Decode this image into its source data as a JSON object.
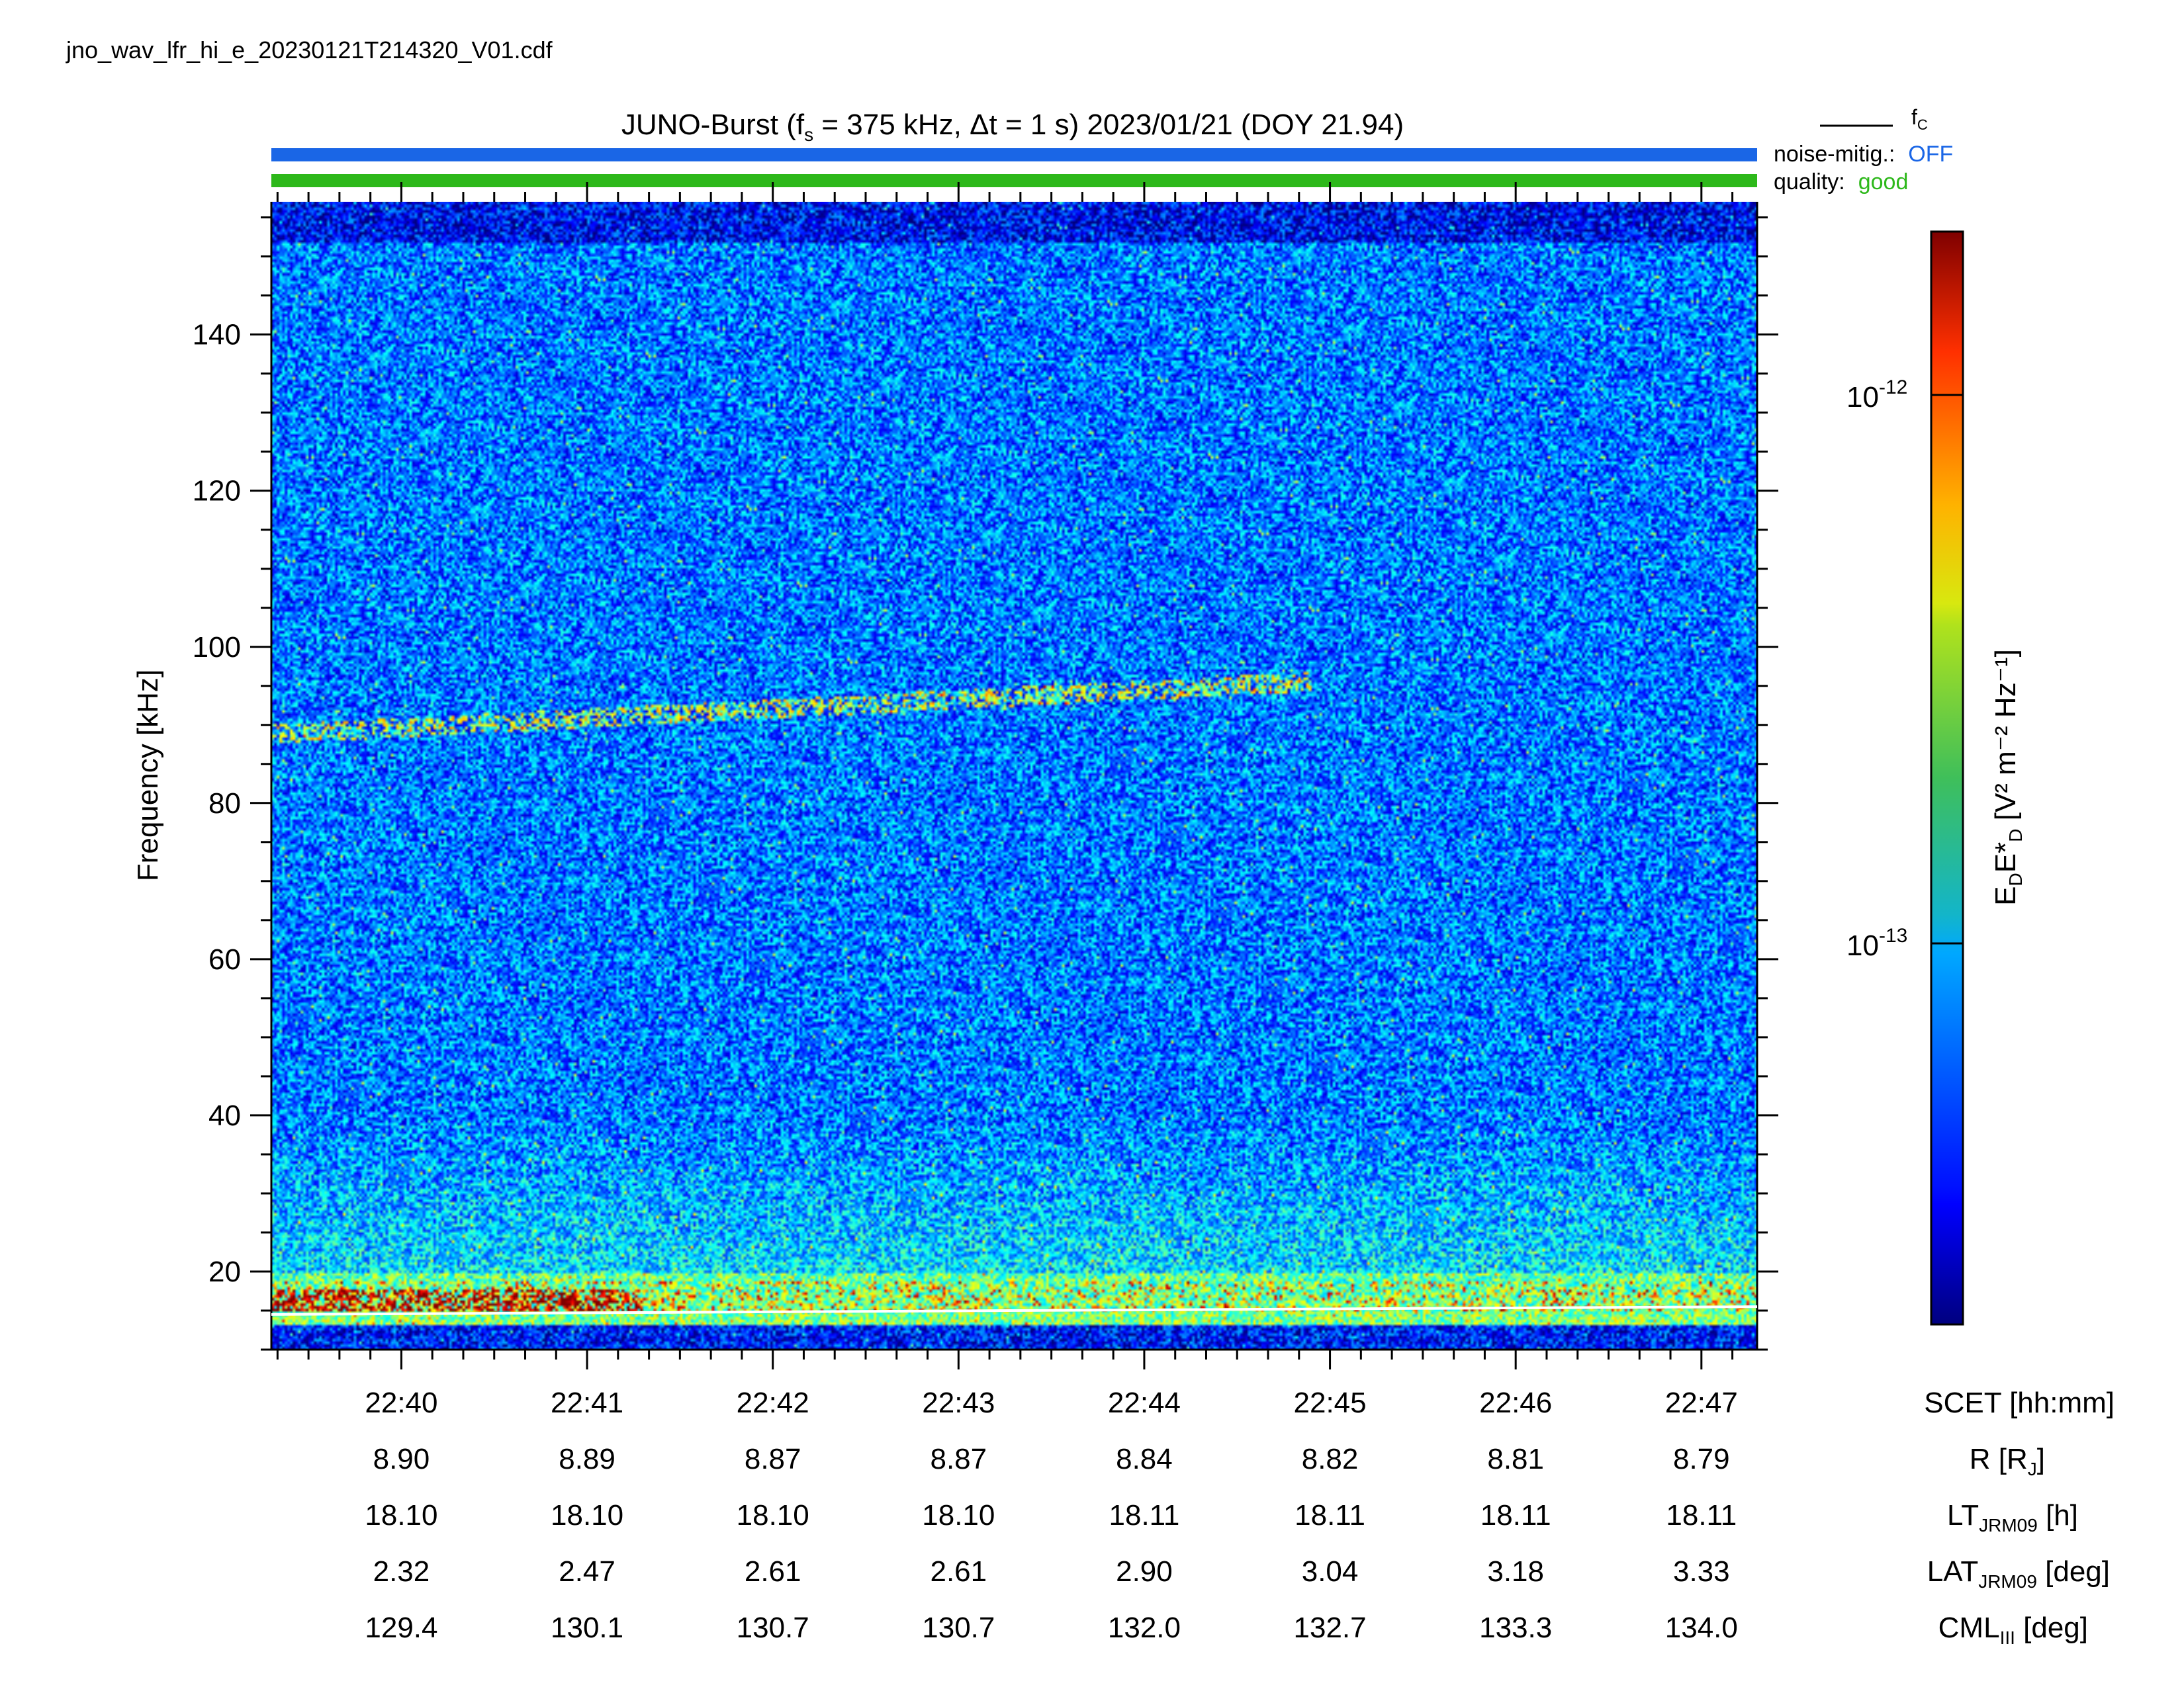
{
  "file_name": "jno_wav_lfr_hi_e_20230121T214320_V01.cdf",
  "title": {
    "prefix": "JUNO-Burst (f",
    "sub": "s",
    "rest": " = 375 kHz, Δt = 1 s)  2023/01/21 (DOY 21.94)"
  },
  "legend": {
    "fc_label": "f",
    "fc_sub": "C",
    "noise_label": "noise-mitig.:",
    "noise_value": "OFF",
    "quality_label": "quality:",
    "quality_value": "good"
  },
  "colors": {
    "noise_bar": "#1a66e6",
    "quality_bar": "#2db81a",
    "fc_line": "#ffffff"
  },
  "colorbar": {
    "label_main": "E",
    "label_sub1": "D",
    "label_mid": "E*",
    "label_sub2": "D",
    "label_units": " [V² m⁻² Hz⁻¹]",
    "tick_1e12_base": "10",
    "tick_1e12_exp": "-12",
    "tick_1e13_base": "10",
    "tick_1e13_exp": "-13",
    "colormap": "jet"
  },
  "row_labels": {
    "scet": "SCET [hh:mm]",
    "r_main": "R [R",
    "r_sub": "J",
    "r_end": "]",
    "lt_main": "LT",
    "lt_sub": "JRM09",
    "lt_end": " [h]",
    "lat_main": "LAT",
    "lat_sub": "JRM09",
    "lat_end": " [deg]",
    "cml_main": "CML",
    "cml_sub": "III",
    "cml_end": " [deg]"
  },
  "chart_data": {
    "type": "heatmap",
    "ylabel": "Frequency [kHz]",
    "ylim": [
      10,
      157
    ],
    "y_ticks": [
      20,
      40,
      60,
      80,
      100,
      120,
      140
    ],
    "y_tick_labels": [
      "20",
      "40",
      "60",
      "80",
      "100",
      "120",
      "140"
    ],
    "x_range_minutes": [
      "22:39:18",
      "22:47:18"
    ],
    "x_tick_labels": [
      "22:40",
      "22:41",
      "22:42",
      "22:43",
      "22:44",
      "22:45",
      "22:46",
      "22:47"
    ],
    "ephemeris": {
      "R": [
        "8.90",
        "8.89",
        "8.87",
        "8.87",
        "8.84",
        "8.82",
        "8.81",
        "8.79"
      ],
      "LT": [
        "18.10",
        "18.10",
        "18.10",
        "18.10",
        "18.11",
        "18.11",
        "18.11",
        "18.11"
      ],
      "LAT": [
        "2.32",
        "2.47",
        "2.61",
        "2.61",
        "2.90",
        "3.04",
        "3.18",
        "3.33"
      ],
      "CML": [
        "129.4",
        "130.1",
        "130.7",
        "130.7",
        "132.0",
        "132.7",
        "133.3",
        "134.0"
      ]
    },
    "fc_line_khz": [
      14.5,
      15.5
    ],
    "features": [
      {
        "name": "emission band",
        "freq_khz_start": 89,
        "freq_khz_end": 97
      },
      {
        "name": "low-frequency intense band",
        "freq_khz_min": 15,
        "freq_khz_max": 18
      }
    ]
  }
}
